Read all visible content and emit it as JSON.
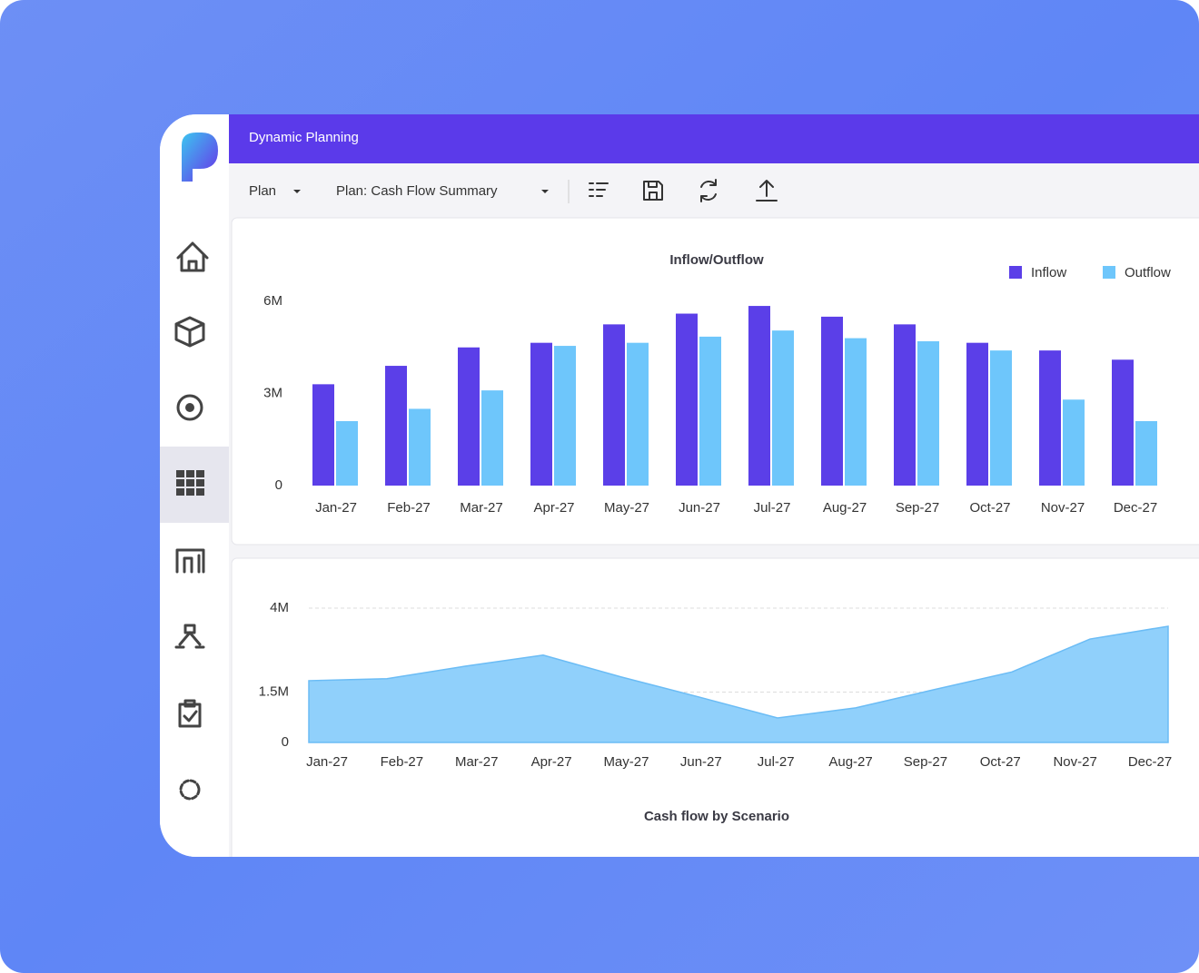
{
  "header": {
    "title": "Dynamic Planning"
  },
  "toolbar": {
    "items": [
      "Plan",
      "Plan: Cash Flow Summary"
    ]
  },
  "chart_data": [
    {
      "type": "bar",
      "title": "Inflow/Outflow",
      "categories": [
        "Jan-27",
        "Feb-27",
        "Mar-27",
        "Apr-27",
        "May-27",
        "Jun-27",
        "Jul-27",
        "Aug-27",
        "Sep-27",
        "Oct-27",
        "Nov-27",
        "Dec-27"
      ],
      "series": [
        {
          "name": "Inflow",
          "color": "#5b3fe8",
          "values": [
            3300000,
            3900000,
            4500000,
            4650000,
            5250000,
            5600000,
            5850000,
            5500000,
            5250000,
            4650000,
            4400000,
            4100000
          ]
        },
        {
          "name": "Outflow",
          "color": "#6ec6fb",
          "values": [
            2100000,
            2500000,
            3100000,
            4550000,
            4650000,
            4850000,
            5050000,
            4800000,
            4700000,
            4400000,
            2800000,
            2100000
          ]
        }
      ],
      "ylim": [
        0,
        6000000
      ],
      "yticks": [
        0,
        {
          "value": 3000000,
          "label": "3M"
        },
        {
          "value": 6000000,
          "label": "6M"
        }
      ],
      "legend": "top-right",
      "grid": false
    },
    {
      "type": "area",
      "title": "Cash flow by Scenario",
      "categories": [
        "Jan-27",
        "Feb-27",
        "Mar-27",
        "Apr-27",
        "May-27",
        "Jun-27",
        "Jul-27",
        "Aug-27",
        "Sep-27",
        "Oct-27",
        "Nov-27",
        "Dec-27"
      ],
      "values": [
        1840000,
        1900000,
        2270000,
        2600000,
        1950000,
        1350000,
        730000,
        1030000,
        1570000,
        2100000,
        3080000,
        3460000
      ],
      "color": "#90d0fb",
      "ylim": [
        0,
        4000000
      ],
      "yticks": [
        0,
        {
          "value": 1500000,
          "label": "1.5M"
        },
        {
          "value": 4000000,
          "label": "4M"
        }
      ],
      "grid": true
    }
  ]
}
